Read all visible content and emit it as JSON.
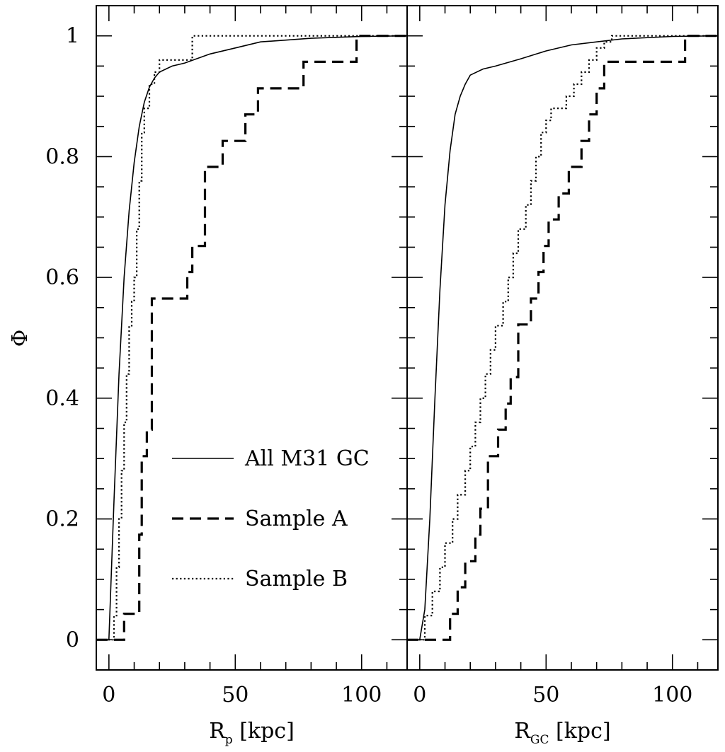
{
  "chart_data": {
    "type": "step-line",
    "ylabel": "Φ",
    "ylim": [
      -0.05,
      1.05
    ],
    "yticks": [
      0,
      0.2,
      0.4,
      0.6,
      0.8,
      1
    ],
    "ytick_labels": [
      "0",
      "0.2",
      "0.4",
      "0.6",
      "0.8",
      "1"
    ],
    "legend": {
      "position": "lower-center of left panel",
      "entries": [
        {
          "label": "All M31 GC",
          "style": "solid"
        },
        {
          "label": "Sample A",
          "style": "dashed"
        },
        {
          "label": "Sample B",
          "style": "dotted"
        }
      ]
    },
    "panels": [
      {
        "name": "left",
        "xlabel_main": "R",
        "xlabel_sub": "p",
        "xlabel_unit": " [kpc]",
        "xlim": [
          -5,
          118
        ],
        "xticks": [
          0,
          50,
          100
        ],
        "xtick_labels": [
          "0",
          "50",
          "100"
        ],
        "series": [
          {
            "name": "All M31 GC",
            "style": "solid",
            "x": [
              0,
              2,
              4,
              6,
              8,
              10,
              12,
              14,
              16,
              18,
              20,
              25,
              30,
              40,
              50,
              60,
              70,
              80,
              100,
              118
            ],
            "y": [
              0,
              0.23,
              0.44,
              0.6,
              0.71,
              0.79,
              0.85,
              0.89,
              0.915,
              0.93,
              0.94,
              0.95,
              0.955,
              0.97,
              0.98,
              0.99,
              0.993,
              0.996,
              0.999,
              1.0
            ]
          },
          {
            "name": "Sample A",
            "style": "dashed",
            "step": true,
            "x": [
              -5,
              6,
              12,
              13,
              15,
              17,
              20,
              31,
              33,
              38,
              45,
              54,
              59,
              77,
              98,
              118
            ],
            "y": [
              0,
              0.043,
              0.174,
              0.304,
              0.348,
              0.565,
              0.565,
              0.609,
              0.652,
              0.783,
              0.826,
              0.87,
              0.913,
              0.957,
              1.0,
              1.0
            ]
          },
          {
            "name": "Sample B",
            "style": "dotted",
            "step": true,
            "x": [
              -5,
              2,
              3,
              4,
              5,
              6,
              7,
              8,
              9,
              10,
              11,
              12,
              13,
              14,
              16,
              18,
              20,
              25,
              33,
              118
            ],
            "y": [
              0,
              0.04,
              0.12,
              0.2,
              0.28,
              0.36,
              0.44,
              0.52,
              0.56,
              0.6,
              0.68,
              0.76,
              0.84,
              0.88,
              0.92,
              0.94,
              0.96,
              0.96,
              1.0,
              1.0
            ]
          }
        ]
      },
      {
        "name": "right",
        "xlabel_main": "R",
        "xlabel_sub": "GC",
        "xlabel_unit": " [kpc]",
        "xlim": [
          -5,
          118
        ],
        "xticks": [
          0,
          50,
          100
        ],
        "xtick_labels": [
          "0",
          "50",
          "100"
        ],
        "series": [
          {
            "name": "All M31 GC",
            "style": "solid",
            "x": [
              0,
              2,
              4,
              6,
              8,
              10,
              12,
              14,
              16,
              18,
              20,
              25,
              30,
              40,
              50,
              60,
              70,
              80,
              100,
              118
            ],
            "y": [
              0,
              0.05,
              0.2,
              0.4,
              0.58,
              0.72,
              0.81,
              0.87,
              0.9,
              0.92,
              0.935,
              0.945,
              0.95,
              0.962,
              0.975,
              0.985,
              0.99,
              0.995,
              0.999,
              1.0
            ]
          },
          {
            "name": "Sample A",
            "style": "dashed",
            "step": true,
            "x": [
              -5,
              12,
              15,
              18,
              22,
              24,
              27,
              31,
              34,
              36,
              39,
              44,
              47,
              49,
              51,
              55,
              59,
              64,
              67,
              70,
              73,
              77,
              105,
              118
            ],
            "y": [
              0,
              0.043,
              0.087,
              0.13,
              0.174,
              0.217,
              0.304,
              0.348,
              0.391,
              0.435,
              0.522,
              0.565,
              0.609,
              0.652,
              0.696,
              0.739,
              0.783,
              0.826,
              0.87,
              0.913,
              0.957,
              0.957,
              1.0,
              1.0
            ]
          },
          {
            "name": "Sample B",
            "style": "dotted",
            "step": true,
            "x": [
              -5,
              2,
              5,
              8,
              10,
              13,
              15,
              18,
              20,
              22,
              24,
              26,
              28,
              30,
              33,
              35,
              37,
              39,
              42,
              44,
              46,
              48,
              50,
              52,
              55,
              58,
              61,
              64,
              67,
              70,
              73,
              76,
              118
            ],
            "y": [
              0,
              0.04,
              0.08,
              0.12,
              0.16,
              0.2,
              0.24,
              0.28,
              0.32,
              0.36,
              0.4,
              0.44,
              0.48,
              0.52,
              0.56,
              0.6,
              0.64,
              0.68,
              0.72,
              0.76,
              0.8,
              0.84,
              0.86,
              0.88,
              0.88,
              0.9,
              0.92,
              0.94,
              0.96,
              0.98,
              0.99,
              1.0,
              1.0
            ]
          }
        ]
      }
    ]
  }
}
